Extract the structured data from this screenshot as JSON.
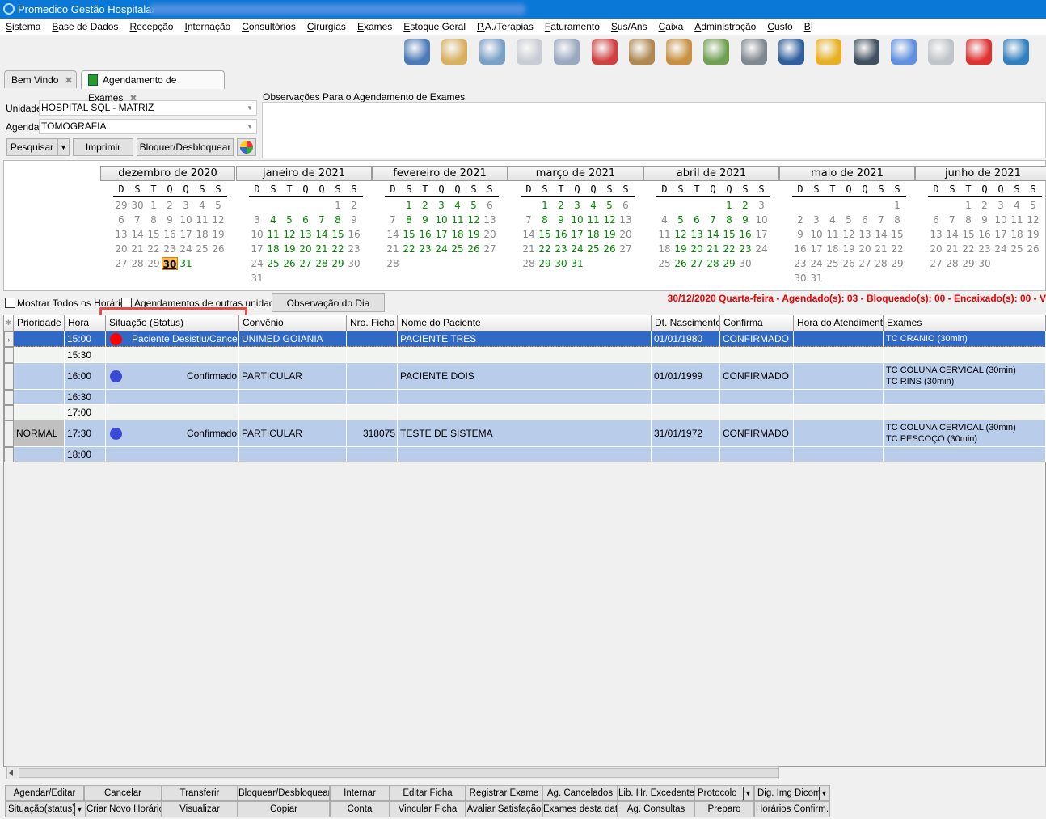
{
  "app": {
    "title": "Promedico Gestão Hospitalar"
  },
  "menu": [
    "Sistema",
    "Base de Dados",
    "Recepção",
    "Internação",
    "Consultórios",
    "Cirurgias",
    "Exames",
    "Estoque Geral",
    "P.A./Terapias",
    "Faturamento",
    "Sus/Ans",
    "Caixa",
    "Administração",
    "Custo",
    "BI"
  ],
  "toolbar_icons": [
    {
      "name": "users-refresh-icon",
      "color": "#4a7ab8"
    },
    {
      "name": "patients-folder-icon",
      "color": "#d9b060"
    },
    {
      "name": "doctor-icon",
      "color": "#7aa0c8"
    },
    {
      "name": "document-pen-icon",
      "color": "#c8ccd4"
    },
    {
      "name": "ambulance-icon",
      "color": "#9aa8c0"
    },
    {
      "name": "ambulance-cross-icon",
      "color": "#d04040"
    },
    {
      "name": "boxes-icon",
      "color": "#b08850"
    },
    {
      "name": "goods-up-icon",
      "color": "#c89040"
    },
    {
      "name": "money-down-icon",
      "color": "#70a050"
    },
    {
      "name": "safe-icon",
      "color": "#808890"
    },
    {
      "name": "chart-money-icon",
      "color": "#3060a0"
    },
    {
      "name": "phone-book-icon",
      "color": "#e8b020"
    },
    {
      "name": "book-icon",
      "color": "#405060"
    },
    {
      "name": "chat-bubble-icon",
      "color": "#6090e0"
    },
    {
      "name": "report-icon",
      "color": "#c0c4c8"
    },
    {
      "name": "power-icon",
      "color": "#e03030"
    },
    {
      "name": "ie-document-icon",
      "color": "#3080c0"
    }
  ],
  "tabs": [
    {
      "label": "Bem Vindo",
      "active": false
    },
    {
      "label": "Agendamento de Exames",
      "active": true
    }
  ],
  "filters": {
    "unidade_label": "Unidade",
    "unidade_value": "HOSPITAL SQL - MATRIZ",
    "agenda_label": "Agenda",
    "agenda_value": "TOMOGRAFIA",
    "pesquisar": "Pesquisar",
    "imprimir": "Imprimir",
    "bloquear": "Bloquer/Desbloquear",
    "obs_label": "Observações Para o Agendamento de Exames",
    "obs_value": ""
  },
  "calendar": {
    "weekdays": [
      "D",
      "S",
      "T",
      "Q",
      "Q",
      "S",
      "S"
    ],
    "months": [
      {
        "label": "dezembro de 2020",
        "year": 2020,
        "month": 12,
        "leading": [
          29,
          30
        ],
        "green": [
          31
        ],
        "selected": 30
      },
      {
        "label": "janeiro de 2021",
        "year": 2021,
        "month": 1,
        "green": [
          4,
          5,
          6,
          7,
          8,
          11,
          12,
          13,
          14,
          15,
          18,
          19,
          20,
          21,
          22,
          25,
          26,
          27,
          28,
          29
        ]
      },
      {
        "label": "fevereiro de 2021",
        "year": 2021,
        "month": 2,
        "green": [
          1,
          2,
          3,
          4,
          5,
          8,
          9,
          10,
          11,
          12,
          15,
          16,
          17,
          18,
          19,
          22,
          23,
          24,
          25,
          26
        ]
      },
      {
        "label": "março de 2021",
        "year": 2021,
        "month": 3,
        "green": [
          1,
          2,
          3,
          4,
          5,
          8,
          9,
          10,
          11,
          12,
          15,
          16,
          17,
          18,
          19,
          22,
          23,
          24,
          25,
          26,
          29,
          30,
          31
        ]
      },
      {
        "label": "abril de 2021",
        "year": 2021,
        "month": 4,
        "green": [
          1,
          2,
          5,
          6,
          7,
          8,
          9,
          12,
          13,
          14,
          15,
          16,
          19,
          20,
          21,
          22,
          23,
          26,
          27,
          28,
          29
        ]
      },
      {
        "label": "maio de 2021",
        "year": 2021,
        "month": 5,
        "green": []
      },
      {
        "label": "junho de 2021",
        "year": 2021,
        "month": 6,
        "green": []
      }
    ],
    "green_color": "#008000",
    "selected_color": "#f7b960"
  },
  "options": {
    "mostrar_todos": "Mostrar Todos os Horários",
    "outras_unidades": "Agendamentos de outras unidades",
    "observacao_dia": "Observação do Dia"
  },
  "summary": "30/12/2020 Quarta-feira - Agendado(s): 03 - Bloqueado(s): 00 - Encaixado(s): 00 - V",
  "grid": {
    "columns": [
      "Prioridade",
      "Hora",
      "Situação (Status)",
      "Convênio",
      "Nro. Ficha",
      "Nome do Paciente",
      "Dt. Nascimento",
      "Confirma",
      "Hora do Atendimento",
      "Exames"
    ],
    "rows": [
      {
        "prioridade": "",
        "hora": "15:00",
        "status": "Paciente Desistiu/Cancelou",
        "status_color": "#ff0000",
        "convenio": "UNIMED GOIANIA",
        "ficha": "",
        "nome": "PACIENTE TRES",
        "nasc": "01/01/1980",
        "confirma": "CONFIRMADO",
        "hora_atend": "",
        "exames": [
          "TC CRANIO (30min)"
        ],
        "state": "selected"
      },
      {
        "prioridade": "",
        "hora": "15:30",
        "status": "",
        "convenio": "",
        "ficha": "",
        "nome": "",
        "nasc": "",
        "confirma": "",
        "hora_atend": "",
        "exames": [],
        "state": "free"
      },
      {
        "prioridade": "",
        "hora": "16:00",
        "status": "Confirmado",
        "status_color": "#3a4ad6",
        "convenio": "PARTICULAR",
        "ficha": "",
        "nome": "PACIENTE DOIS",
        "nasc": "01/01/1999",
        "confirma": "CONFIRMADO",
        "hora_atend": "",
        "exames": [
          "TC COLUNA CERVICAL (30min)",
          "TC RINS (30min)"
        ],
        "state": "booked"
      },
      {
        "prioridade": "",
        "hora": "16:30",
        "status": "",
        "convenio": "",
        "ficha": "",
        "nome": "",
        "nasc": "",
        "confirma": "",
        "hora_atend": "",
        "exames": [],
        "state": "booked"
      },
      {
        "prioridade": "",
        "hora": "17:00",
        "status": "",
        "convenio": "",
        "ficha": "",
        "nome": "",
        "nasc": "",
        "confirma": "",
        "hora_atend": "",
        "exames": [],
        "state": "free"
      },
      {
        "prioridade": "NORMAL",
        "hora": "17:30",
        "status": "Confirmado",
        "status_color": "#3a4ad6",
        "convenio": "PARTICULAR",
        "ficha": "318075",
        "nome": "TESTE DE SISTEMA",
        "nasc": "31/01/1972",
        "confirma": "CONFIRMADO",
        "hora_atend": "",
        "exames": [
          "TC COLUNA CERVICAL (30min)",
          "TC PESCOÇO (30min)"
        ],
        "state": "booked"
      },
      {
        "prioridade": "",
        "hora": "18:00",
        "status": "",
        "convenio": "",
        "ficha": "",
        "nome": "",
        "nasc": "",
        "confirma": "",
        "hora_atend": "",
        "exames": [],
        "state": "booked"
      }
    ],
    "colors": {
      "selected": "#3169c6",
      "booked": "#b9cdeb",
      "free": "#f2f4f2"
    }
  },
  "annotation": {
    "step": "5"
  },
  "actions": {
    "row1": [
      {
        "label": "Agendar/Editar"
      },
      {
        "label": "Cancelar"
      },
      {
        "label": "Transferir"
      },
      {
        "label": "Bloquear/Desbloquear"
      },
      {
        "label": "Internar"
      },
      {
        "label": "Editar Ficha"
      },
      {
        "label": "Registrar Exame"
      },
      {
        "label": "Ag. Cancelados"
      },
      {
        "label": "Lib. Hr. Excedente"
      },
      {
        "label": "Protocolo",
        "dropdown": true
      },
      {
        "label": "Dig. Img Dicom",
        "dropdown": true
      }
    ],
    "row2": [
      {
        "label": "Situação(status)",
        "dropdown": true
      },
      {
        "label": "Criar Novo Horário"
      },
      {
        "label": "Visualizar"
      },
      {
        "label": "Copiar"
      },
      {
        "label": "Conta"
      },
      {
        "label": "Vincular Ficha"
      },
      {
        "label": "Avaliar Satisfação"
      },
      {
        "label": "Exames desta data"
      },
      {
        "label": "Ag. Consultas"
      },
      {
        "label": "Preparo"
      },
      {
        "label": "Horários Confirm."
      }
    ]
  }
}
